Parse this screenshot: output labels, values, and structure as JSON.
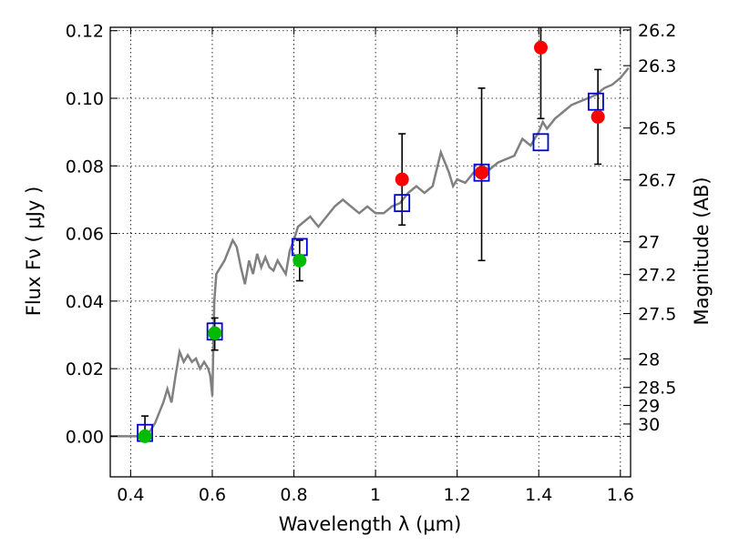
{
  "chart_data": {
    "type": "scatter",
    "xlabel": "Wavelength  λ (μm)",
    "ylabel": "Flux  Fν  ( μJy )",
    "y2label": "Magnitude (AB)",
    "xlim": [
      0.35,
      1.625
    ],
    "ylim": [
      -0.012,
      0.121
    ],
    "grid": true,
    "x_ticks": [
      "0.4",
      "0.6",
      "0.8",
      "1",
      "1.2",
      "1.4",
      "1.6"
    ],
    "y_ticks": [
      "0.00",
      "0.02",
      "0.04",
      "0.06",
      "0.08",
      "0.10",
      "0.12"
    ],
    "mag_ticks": [
      "26.2",
      "26.3",
      "26.5",
      "26.7",
      "27",
      "27.2",
      "27.5",
      "28",
      "28.5",
      "29",
      "30"
    ],
    "colors": {
      "model": "#808080",
      "synthetic": "#0000cc",
      "red": "#ff0000",
      "green": "#00bb00",
      "errorbar": "#000000"
    },
    "model_spectrum": {
      "x": [
        0.35,
        0.44,
        0.46,
        0.47,
        0.48,
        0.49,
        0.5,
        0.51,
        0.52,
        0.53,
        0.54,
        0.55,
        0.56,
        0.57,
        0.58,
        0.59,
        0.595,
        0.6,
        0.605,
        0.61,
        0.62,
        0.63,
        0.64,
        0.65,
        0.66,
        0.67,
        0.68,
        0.69,
        0.7,
        0.71,
        0.72,
        0.73,
        0.74,
        0.75,
        0.76,
        0.77,
        0.78,
        0.79,
        0.8,
        0.81,
        0.82,
        0.84,
        0.86,
        0.88,
        0.9,
        0.92,
        0.94,
        0.96,
        0.98,
        1.0,
        1.02,
        1.04,
        1.06,
        1.08,
        1.1,
        1.12,
        1.14,
        1.16,
        1.18,
        1.19,
        1.2,
        1.22,
        1.24,
        1.26,
        1.28,
        1.3,
        1.32,
        1.34,
        1.36,
        1.38,
        1.4,
        1.41,
        1.42,
        1.44,
        1.46,
        1.48,
        1.5,
        1.52,
        1.54,
        1.56,
        1.58,
        1.6,
        1.62
      ],
      "y": [
        0.0,
        0.0,
        0.004,
        0.007,
        0.01,
        0.014,
        0.01,
        0.018,
        0.025,
        0.022,
        0.024,
        0.022,
        0.023,
        0.02,
        0.022,
        0.02,
        0.018,
        0.012,
        0.04,
        0.048,
        0.05,
        0.052,
        0.055,
        0.058,
        0.056,
        0.05,
        0.045,
        0.052,
        0.048,
        0.054,
        0.05,
        0.053,
        0.05,
        0.049,
        0.052,
        0.05,
        0.048,
        0.055,
        0.058,
        0.062,
        0.063,
        0.065,
        0.062,
        0.065,
        0.068,
        0.07,
        0.068,
        0.066,
        0.068,
        0.066,
        0.066,
        0.068,
        0.069,
        0.072,
        0.074,
        0.072,
        0.074,
        0.084,
        0.078,
        0.074,
        0.076,
        0.075,
        0.078,
        0.08,
        0.079,
        0.081,
        0.082,
        0.083,
        0.088,
        0.086,
        0.09,
        0.093,
        0.091,
        0.094,
        0.096,
        0.098,
        0.099,
        0.1,
        0.101,
        0.103,
        0.104,
        0.106,
        0.109
      ]
    },
    "synthetic_photometry": {
      "x": [
        0.435,
        0.606,
        0.814,
        1.065,
        1.26,
        1.405,
        1.54
      ],
      "y": [
        0.001,
        0.031,
        0.056,
        0.069,
        0.078,
        0.087,
        0.099
      ]
    },
    "observed_red": {
      "x": [
        1.065,
        1.26,
        1.405,
        1.545
      ],
      "y": [
        0.076,
        0.078,
        0.115,
        0.0945
      ],
      "yerr_low": [
        0.0625,
        0.052,
        0.094,
        0.0805
      ],
      "yerr_high": [
        0.0895,
        0.103,
        0.125,
        0.1085
      ]
    },
    "observed_green": {
      "x": [
        0.435,
        0.606,
        0.814
      ],
      "y": [
        0.0,
        0.0305,
        0.052
      ],
      "yerr_low": [
        -0.0015,
        0.0255,
        0.046
      ],
      "yerr_high": [
        0.006,
        0.035,
        0.058
      ]
    }
  }
}
